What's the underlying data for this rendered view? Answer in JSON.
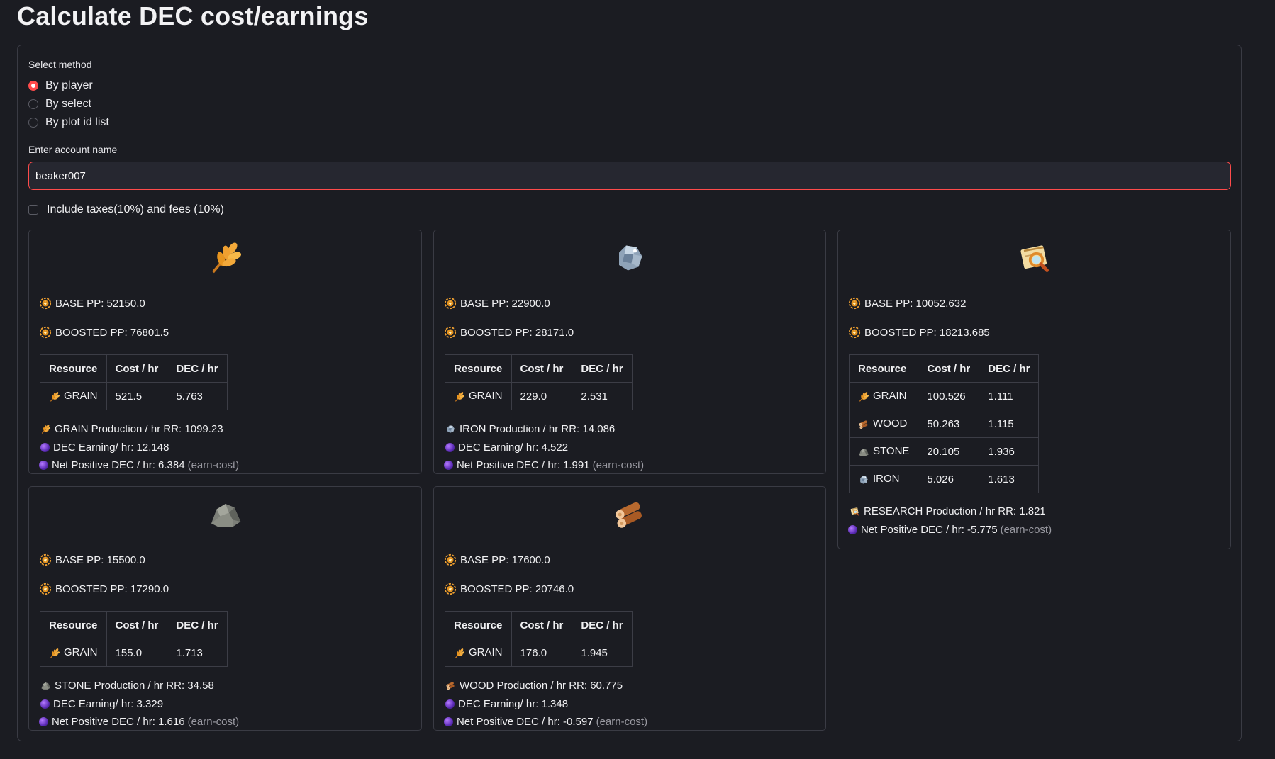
{
  "page": {
    "title": "Calculate DEC cost/earnings"
  },
  "method": {
    "label": "Select method",
    "options": [
      "By player",
      "By select",
      "By plot id list"
    ],
    "selected": "By player"
  },
  "account": {
    "label": "Enter account name",
    "value": "beaker007"
  },
  "taxes": {
    "label": "Include taxes(10%) and fees (10%)",
    "checked": false
  },
  "colors": {
    "accent": "#ff4b4b",
    "background": "#1b1c22",
    "border": "#3a3b44"
  },
  "table_headers": [
    "Resource",
    "Cost / hr",
    "DEC / hr"
  ],
  "cards": [
    {
      "icon": "grain-icon",
      "base_pp": "BASE PP: 52150.0",
      "boosted_pp": "BOOSTED PP: 76801.5",
      "rows": [
        {
          "icon": "grain-icon",
          "resource": "GRAIN",
          "cost": "521.5",
          "dec": "5.763"
        }
      ],
      "production": "GRAIN Production / hr RR: 1099.23",
      "dec_earning": "DEC Earning/ hr: 12.148",
      "net": "Net Positive DEC / hr: 6.384",
      "net_note": "(earn-cost)"
    },
    {
      "icon": "iron-icon",
      "base_pp": "BASE PP: 22900.0",
      "boosted_pp": "BOOSTED PP: 28171.0",
      "rows": [
        {
          "icon": "grain-icon",
          "resource": "GRAIN",
          "cost": "229.0",
          "dec": "2.531"
        }
      ],
      "production": "IRON Production / hr RR: 14.086",
      "dec_earning": "DEC Earning/ hr: 4.522",
      "net": "Net Positive DEC / hr: 1.991",
      "net_note": "(earn-cost)"
    },
    {
      "icon": "research-icon",
      "base_pp": "BASE PP: 10052.632",
      "boosted_pp": "BOOSTED PP: 18213.685",
      "rows": [
        {
          "icon": "grain-icon",
          "resource": "GRAIN",
          "cost": "100.526",
          "dec": "1.111"
        },
        {
          "icon": "wood-icon",
          "resource": "WOOD",
          "cost": "50.263",
          "dec": "1.115"
        },
        {
          "icon": "stone-icon",
          "resource": "STONE",
          "cost": "20.105",
          "dec": "1.936"
        },
        {
          "icon": "iron-icon",
          "resource": "IRON",
          "cost": "5.026",
          "dec": "1.613"
        }
      ],
      "production": "RESEARCH Production / hr RR: 1.821",
      "net": "Net Positive DEC / hr: -5.775",
      "net_note": "(earn-cost)"
    },
    {
      "icon": "stone-icon",
      "base_pp": "BASE PP: 15500.0",
      "boosted_pp": "BOOSTED PP: 17290.0",
      "rows": [
        {
          "icon": "grain-icon",
          "resource": "GRAIN",
          "cost": "155.0",
          "dec": "1.713"
        }
      ],
      "production": "STONE Production / hr RR: 34.58",
      "dec_earning": "DEC Earning/ hr: 3.329",
      "net": "Net Positive DEC / hr: 1.616",
      "net_note": "(earn-cost)"
    },
    {
      "icon": "wood-icon",
      "base_pp": "BASE PP: 17600.0",
      "boosted_pp": "BOOSTED PP: 20746.0",
      "rows": [
        {
          "icon": "grain-icon",
          "resource": "GRAIN",
          "cost": "176.0",
          "dec": "1.945"
        }
      ],
      "production": "WOOD Production / hr RR: 60.775",
      "dec_earning": "DEC Earning/ hr: 1.348",
      "net": "Net Positive DEC / hr: -0.597",
      "net_note": "(earn-cost)"
    }
  ]
}
